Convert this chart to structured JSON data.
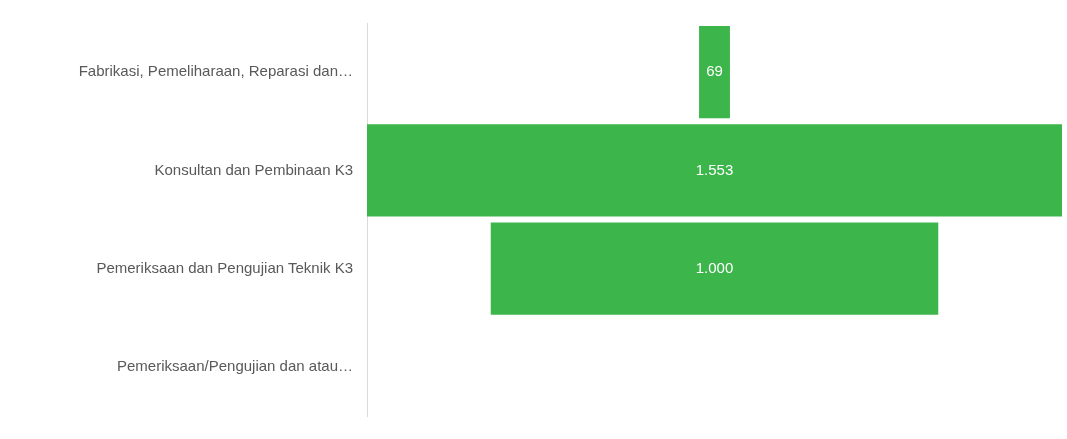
{
  "chart_data": {
    "type": "other",
    "categories": [
      "Fabrikasi, Pemeliharaan, Reparasi dan…",
      "Konsultan dan Pembinaan K3",
      "Pemeriksaan dan Pengujian Teknik K3",
      "Pemeriksaan/Pengujian dan atau…"
    ],
    "values": [
      69,
      1553,
      1000,
      null
    ],
    "value_labels": [
      "69",
      "1.553",
      "1.000",
      null
    ],
    "color": "#3cb54a"
  }
}
